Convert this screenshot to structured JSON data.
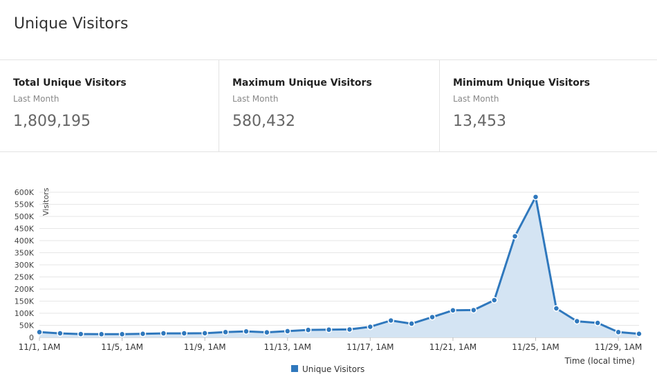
{
  "header": {
    "title": "Unique Visitors"
  },
  "stats": [
    {
      "label": "Total Unique Visitors",
      "period": "Last Month",
      "value": "1,809,195"
    },
    {
      "label": "Maximum Unique Visitors",
      "period": "Last Month",
      "value": "580,432"
    },
    {
      "label": "Minimum Unique Visitors",
      "period": "Last Month",
      "value": "13,453"
    }
  ],
  "colors": {
    "series": "#2f78bd",
    "area": "#d4e4f3"
  },
  "chart_data": {
    "type": "area",
    "ylabel": "Visitors",
    "xlabel": "Time (local time)",
    "ylim": [
      0,
      600000
    ],
    "yticks": [
      {
        "value": 0,
        "label": "0"
      },
      {
        "value": 50000,
        "label": "50K"
      },
      {
        "value": 100000,
        "label": "100K"
      },
      {
        "value": 150000,
        "label": "150K"
      },
      {
        "value": 200000,
        "label": "200K"
      },
      {
        "value": 250000,
        "label": "250K"
      },
      {
        "value": 300000,
        "label": "300K"
      },
      {
        "value": 350000,
        "label": "350K"
      },
      {
        "value": 400000,
        "label": "400K"
      },
      {
        "value": 450000,
        "label": "450K"
      },
      {
        "value": 500000,
        "label": "500K"
      },
      {
        "value": 550000,
        "label": "550K"
      },
      {
        "value": 600000,
        "label": "600K"
      }
    ],
    "xticks": [
      {
        "index": 0,
        "label": "11/1, 1AM"
      },
      {
        "index": 4,
        "label": "11/5, 1AM"
      },
      {
        "index": 8,
        "label": "11/9, 1AM"
      },
      {
        "index": 12,
        "label": "11/13, 1AM"
      },
      {
        "index": 16,
        "label": "11/17, 1AM"
      },
      {
        "index": 20,
        "label": "11/21, 1AM"
      },
      {
        "index": 24,
        "label": "11/25, 1AM"
      },
      {
        "index": 28,
        "label": "11/29, 1AM"
      }
    ],
    "legend": {
      "position": "bottom-center"
    },
    "grid": true,
    "series": [
      {
        "name": "Unique Visitors",
        "values": [
          22000,
          17000,
          14000,
          13500,
          13453,
          15000,
          17000,
          17000,
          17500,
          22000,
          25000,
          21000,
          26000,
          31000,
          32000,
          33000,
          44000,
          70000,
          57000,
          84000,
          112000,
          113000,
          154000,
          418000,
          580432,
          120000,
          67000,
          60000,
          22000,
          15000
        ]
      }
    ]
  }
}
